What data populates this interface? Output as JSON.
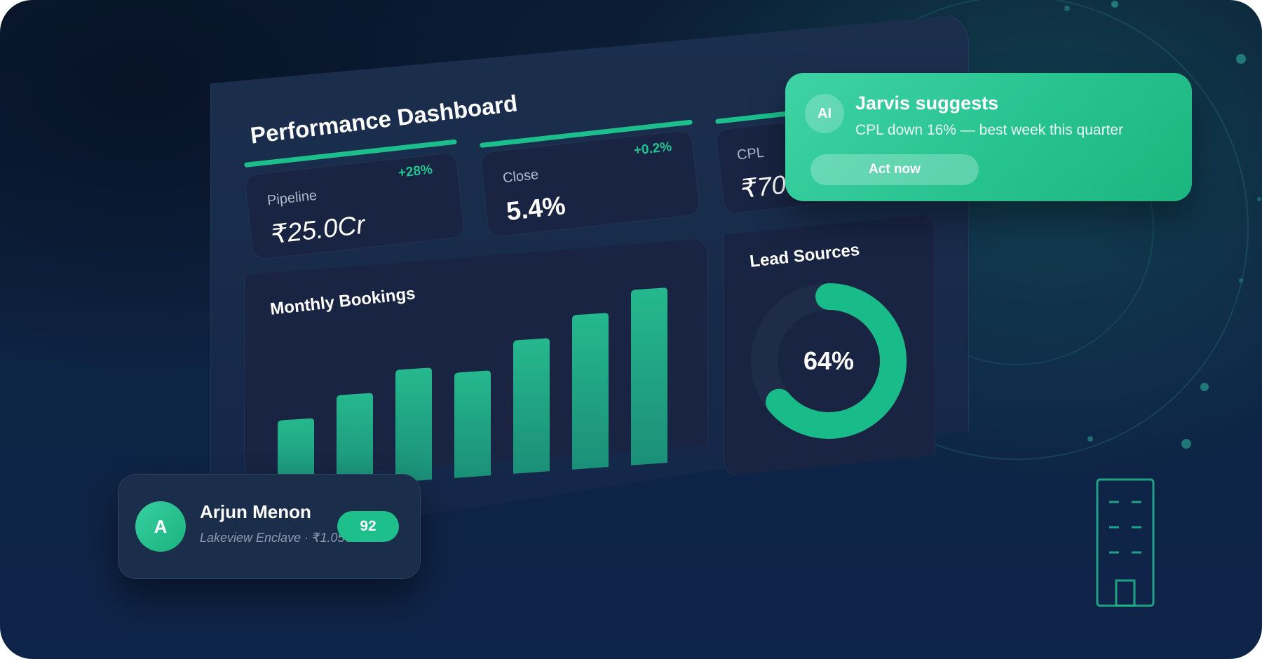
{
  "dashboard": {
    "title": "Performance Dashboard",
    "kpis": [
      {
        "label": "Pipeline",
        "value": "₹25.0Cr",
        "delta": "+28%"
      },
      {
        "label": "Close",
        "value": "5.4%",
        "delta": "+0.2%"
      },
      {
        "label": "CPL",
        "value": "₹700",
        "delta": ""
      }
    ],
    "monthly_bookings": {
      "title": "Monthly Bookings"
    },
    "lead_sources": {
      "title": "Lead Sources",
      "value_label": "64%"
    }
  },
  "chart_data": [
    {
      "type": "bar",
      "title": "Monthly Bookings",
      "categories": [
        "",
        "",
        "",
        "",
        "",
        "",
        ""
      ],
      "values": [
        40,
        52,
        64,
        60,
        76,
        88,
        100
      ],
      "xlabel": "",
      "ylabel": "",
      "ylim": [
        0,
        100
      ],
      "grid": false,
      "color": "#1fbf8c"
    },
    {
      "type": "pie",
      "title": "Lead Sources",
      "values": [
        64,
        36
      ],
      "center_label": "64%",
      "colors": [
        "#19bc88",
        "#1e2c4a"
      ]
    }
  ],
  "jarvis": {
    "avatar": "AI",
    "title": "Jarvis suggests",
    "message": "CPL down 16% — best week this quarter",
    "action_label": "Act now"
  },
  "lead_card": {
    "avatar_initial": "A",
    "name": "Arjun Menon",
    "subtitle": "Lakeview Enclave · ₹1.05Cr",
    "score": "92"
  },
  "icons": {
    "building": "building-icon"
  },
  "colors": {
    "accent": "#1cbf8c",
    "background": "#0e2444",
    "panel": "#182442"
  }
}
